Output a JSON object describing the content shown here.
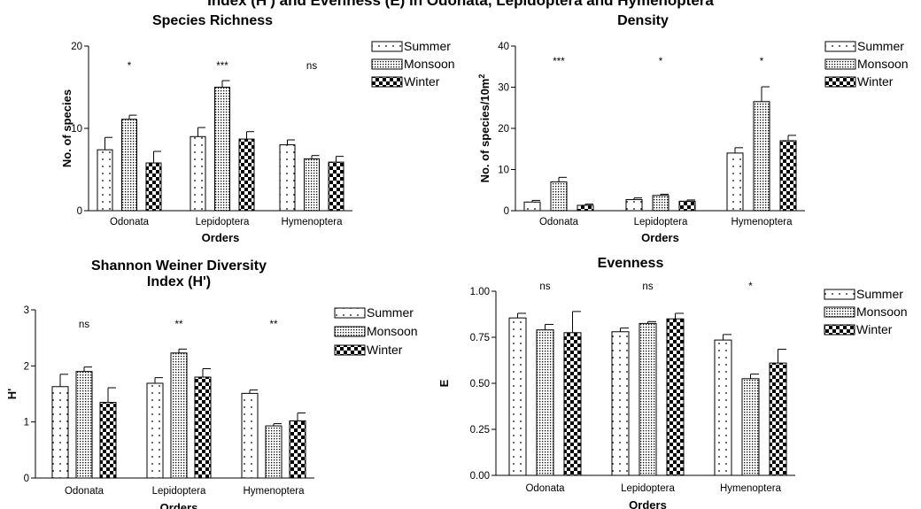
{
  "figure_title": "Index (H') and Evenness (E) in Odonata, Lepidoptera and Hymenoptera",
  "legend": [
    "Summer",
    "Monsoon",
    "Winter"
  ],
  "chart_data": [
    {
      "type": "bar",
      "title": "Species Richness",
      "xlabel": "Orders",
      "ylabel": "No. of species",
      "ylim": [
        0,
        20
      ],
      "yticks": [
        "0",
        "10",
        "20"
      ],
      "categories": [
        "Odonata",
        "Lepidoptera",
        "Hymenoptera"
      ],
      "series": [
        {
          "name": "Summer",
          "values": [
            7.4,
            9.0,
            8.0
          ],
          "errors": [
            1.5,
            1.1,
            0.6
          ]
        },
        {
          "name": "Monsoon",
          "values": [
            11.1,
            15.0,
            6.3
          ],
          "errors": [
            0.5,
            0.8,
            0.4
          ]
        },
        {
          "name": "Winter",
          "values": [
            5.8,
            8.7,
            5.9
          ],
          "errors": [
            1.4,
            0.9,
            0.7
          ]
        }
      ],
      "significance": [
        "*",
        "***",
        "ns"
      ],
      "legend_position": "right"
    },
    {
      "type": "bar",
      "title": "Density",
      "xlabel": "Orders",
      "ylabel": "No. of species/10m²",
      "ylim": [
        0,
        40
      ],
      "yticks": [
        "0",
        "10",
        "20",
        "30",
        "40"
      ],
      "categories": [
        "Odonata",
        "Lepidoptera",
        "Hymenoptera"
      ],
      "series": [
        {
          "name": "Summer",
          "values": [
            2.1,
            2.7,
            14.0
          ],
          "errors": [
            0.4,
            0.4,
            1.3
          ]
        },
        {
          "name": "Monsoon",
          "values": [
            7.0,
            3.7,
            26.5
          ],
          "errors": [
            1.1,
            0.3,
            3.6
          ]
        },
        {
          "name": "Winter",
          "values": [
            1.3,
            2.3,
            17.0
          ],
          "errors": [
            0.3,
            0.3,
            1.3
          ]
        }
      ],
      "significance": [
        "***",
        "*",
        "*"
      ],
      "legend_position": "right"
    },
    {
      "type": "bar",
      "title": "Shannon Weiner Diversity Index (H')",
      "title_lines": [
        "Shannon Weiner Diversity",
        "Index (H')"
      ],
      "xlabel": "Orders",
      "ylabel": "H'",
      "ylim": [
        0,
        3
      ],
      "yticks": [
        "0",
        "1",
        "2",
        "3"
      ],
      "categories": [
        "Odonata",
        "Lepidoptera",
        "Hymenoptera"
      ],
      "series": [
        {
          "name": "Summer",
          "values": [
            1.63,
            1.69,
            1.51
          ],
          "errors": [
            0.22,
            0.1,
            0.06
          ]
        },
        {
          "name": "Monsoon",
          "values": [
            1.9,
            2.23,
            0.93
          ],
          "errors": [
            0.08,
            0.07,
            0.04
          ]
        },
        {
          "name": "Winter",
          "values": [
            1.35,
            1.8,
            1.02
          ],
          "errors": [
            0.26,
            0.15,
            0.14
          ]
        }
      ],
      "significance": [
        "ns",
        "**",
        "**"
      ],
      "legend_position": "right"
    },
    {
      "type": "bar",
      "title": "Evenness",
      "xlabel": "Orders",
      "ylabel": "E",
      "ylim": [
        0,
        1.0
      ],
      "yticks": [
        "0.00",
        "0.25",
        "0.50",
        "0.75",
        "1.00"
      ],
      "categories": [
        "Odonata",
        "Lepidoptera",
        "Hymenoptera"
      ],
      "series": [
        {
          "name": "Summer",
          "values": [
            0.855,
            0.78,
            0.735
          ],
          "errors": [
            0.025,
            0.02,
            0.03
          ]
        },
        {
          "name": "Monsoon",
          "values": [
            0.79,
            0.825,
            0.525
          ],
          "errors": [
            0.03,
            0.01,
            0.025
          ]
        },
        {
          "name": "Winter",
          "values": [
            0.775,
            0.85,
            0.61
          ],
          "errors": [
            0.115,
            0.03,
            0.075
          ]
        }
      ],
      "significance": [
        "ns",
        "ns",
        "*"
      ],
      "legend_position": "right"
    }
  ]
}
